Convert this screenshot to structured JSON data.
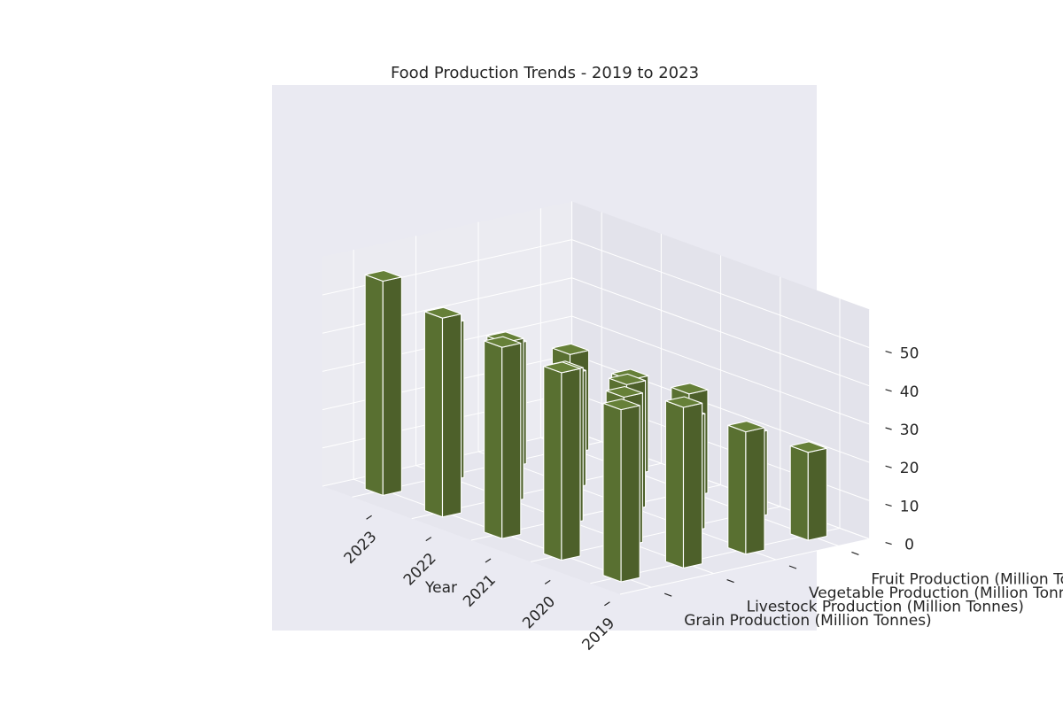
{
  "chart_data": {
    "type": "bar",
    "title": "Food Production Trends - 2019 to 2023",
    "xlabel": "Year",
    "ylabel": "",
    "zlabel": "",
    "categories": [
      "2023",
      "2022",
      "2021",
      "2020",
      "2019"
    ],
    "series": [
      {
        "name": "Grain Production (Million Tonnes)",
        "values": [
          56,
          52,
          50,
          49,
          45
        ]
      },
      {
        "name": "Livestock Production (Million Tonnes)",
        "values": [
          41,
          42,
          40,
          39,
          42
        ]
      },
      {
        "name": "Vegetable Production (Million Tonnes)",
        "values": [
          32,
          30,
          33,
          30,
          32
        ]
      },
      {
        "name": "Fruit Production (Million Tonnes)",
        "values": [
          26,
          25,
          27,
          22,
          23
        ]
      }
    ],
    "zlim": [
      0,
      55
    ],
    "zticks": [
      "0",
      "10",
      "20",
      "30",
      "40",
      "50"
    ],
    "bar_color": "#556b2f",
    "pane_color": "#eaeaf2",
    "grid": true
  }
}
